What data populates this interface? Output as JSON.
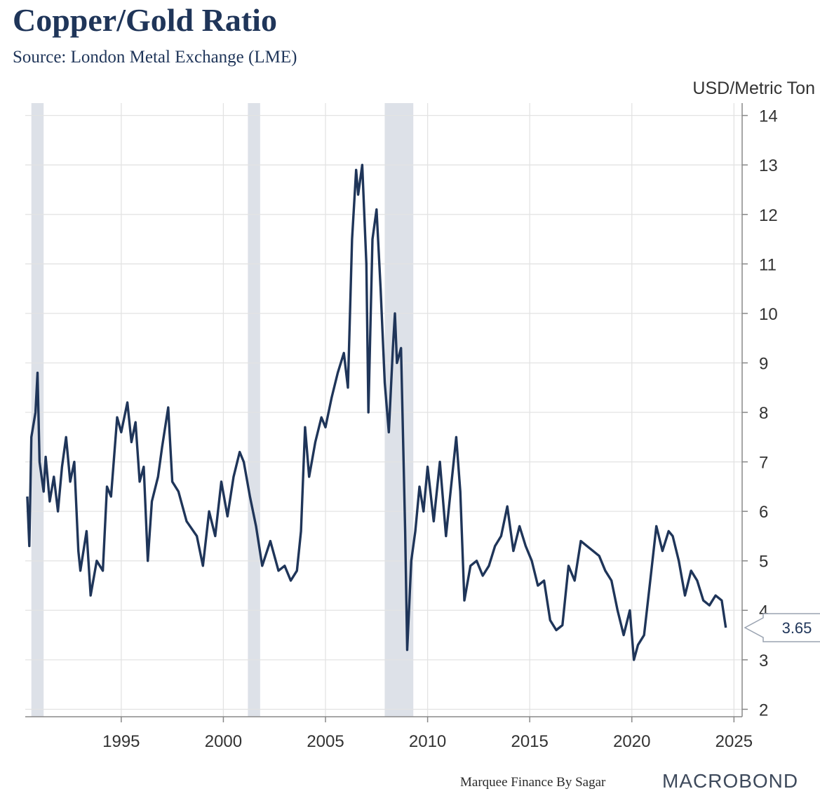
{
  "header": {
    "title": "Copper/Gold Ratio",
    "subtitle": "Source: London Metal Exchange (LME)"
  },
  "footer": {
    "credit": "Marquee Finance By Sagar",
    "brand": "MACROBOND"
  },
  "colors": {
    "line": "#1f3559",
    "recession": "#dde1e8",
    "grid": "#e3e3e3",
    "axis": "#888888"
  },
  "chart_data": {
    "type": "line",
    "title": "Copper/Gold Ratio",
    "unit_label": "USD/Metric Ton",
    "xlim": [
      1990.3,
      2025.4
    ],
    "ylim": [
      1.85,
      14.25
    ],
    "x_ticks": [
      1995,
      2000,
      2005,
      2010,
      2015,
      2020,
      2025
    ],
    "x_tick_labels": [
      "1995",
      "2000",
      "2005",
      "2010",
      "2015",
      "2020",
      "2025"
    ],
    "y_ticks": [
      2,
      3,
      4,
      5,
      6,
      7,
      8,
      9,
      10,
      11,
      12,
      13,
      14
    ],
    "y_tick_labels": [
      "2",
      "3",
      "4",
      "5",
      "6",
      "7",
      "8",
      "9",
      "10",
      "11",
      "12",
      "13",
      "14"
    ],
    "axis_position": "right",
    "grid": true,
    "recession_periods": [
      [
        1990.6,
        1991.2
      ],
      [
        2001.2,
        2001.8
      ],
      [
        2007.9,
        2009.3
      ]
    ],
    "last_value": 3.65,
    "last_value_label": "3.65",
    "series": [
      {
        "name": "Copper/Gold Ratio",
        "x": [
          1990.4,
          1990.5,
          1990.6,
          1990.8,
          1990.9,
          1991.0,
          1991.2,
          1991.3,
          1991.5,
          1991.7,
          1991.9,
          1992.1,
          1992.3,
          1992.5,
          1992.7,
          1992.9,
          1993.0,
          1993.3,
          1993.5,
          1993.8,
          1994.1,
          1994.3,
          1994.5,
          1994.8,
          1995.0,
          1995.3,
          1995.5,
          1995.7,
          1995.9,
          1996.1,
          1996.3,
          1996.5,
          1996.8,
          1997.0,
          1997.3,
          1997.5,
          1997.8,
          1998.2,
          1998.7,
          1999.0,
          1999.3,
          1999.6,
          1999.9,
          2000.2,
          2000.5,
          2000.8,
          2001.0,
          2001.3,
          2001.6,
          2001.9,
          2002.3,
          2002.7,
          2003.0,
          2003.3,
          2003.6,
          2003.8,
          2004.0,
          2004.2,
          2004.5,
          2004.8,
          2005.0,
          2005.3,
          2005.6,
          2005.9,
          2006.1,
          2006.3,
          2006.5,
          2006.6,
          2006.8,
          2007.0,
          2007.1,
          2007.3,
          2007.5,
          2007.7,
          2007.9,
          2008.1,
          2008.3,
          2008.4,
          2008.5,
          2008.7,
          2008.9,
          2009.0,
          2009.2,
          2009.4,
          2009.6,
          2009.8,
          2010.0,
          2010.3,
          2010.6,
          2010.9,
          2011.1,
          2011.4,
          2011.6,
          2011.8,
          2012.1,
          2012.4,
          2012.7,
          2013.0,
          2013.3,
          2013.6,
          2013.9,
          2014.2,
          2014.5,
          2014.8,
          2015.1,
          2015.4,
          2015.7,
          2016.0,
          2016.3,
          2016.6,
          2016.9,
          2017.2,
          2017.5,
          2017.8,
          2018.1,
          2018.4,
          2018.7,
          2019.0,
          2019.3,
          2019.6,
          2019.9,
          2020.1,
          2020.3,
          2020.6,
          2020.9,
          2021.2,
          2021.5,
          2021.8,
          2022.0,
          2022.3,
          2022.6,
          2022.9,
          2023.2,
          2023.5,
          2023.8,
          2024.1,
          2024.4,
          2024.6
        ],
        "values": [
          6.3,
          5.3,
          7.5,
          8.0,
          8.8,
          7.0,
          6.4,
          7.1,
          6.2,
          6.7,
          6.0,
          6.9,
          7.5,
          6.6,
          7.0,
          5.2,
          4.8,
          5.6,
          4.3,
          5.0,
          4.8,
          6.5,
          6.3,
          7.9,
          7.6,
          8.2,
          7.4,
          7.8,
          6.6,
          6.9,
          5.0,
          6.2,
          6.7,
          7.3,
          8.1,
          6.6,
          6.4,
          5.8,
          5.5,
          4.9,
          6.0,
          5.5,
          6.6,
          5.9,
          6.7,
          7.2,
          7.0,
          6.3,
          5.7,
          4.9,
          5.4,
          4.8,
          4.9,
          4.6,
          4.8,
          5.6,
          7.7,
          6.7,
          7.4,
          7.9,
          7.7,
          8.3,
          8.8,
          9.2,
          8.5,
          11.5,
          12.9,
          12.4,
          13.0,
          11.0,
          8.0,
          11.5,
          12.1,
          10.5,
          8.6,
          7.6,
          9.3,
          10.0,
          9.0,
          9.3,
          5.6,
          3.2,
          5.0,
          5.6,
          6.5,
          6.0,
          6.9,
          5.8,
          7.0,
          5.5,
          6.3,
          7.5,
          6.4,
          4.2,
          4.9,
          5.0,
          4.7,
          4.9,
          5.3,
          5.5,
          6.1,
          5.2,
          5.7,
          5.3,
          5.0,
          4.5,
          4.6,
          3.8,
          3.6,
          3.7,
          4.9,
          4.6,
          5.4,
          5.3,
          5.2,
          5.1,
          4.8,
          4.6,
          4.0,
          3.5,
          4.0,
          3.0,
          3.3,
          3.5,
          4.6,
          5.7,
          5.2,
          5.6,
          5.5,
          5.0,
          4.3,
          4.8,
          4.6,
          4.2,
          4.1,
          4.3,
          4.2,
          3.65
        ]
      }
    ]
  }
}
